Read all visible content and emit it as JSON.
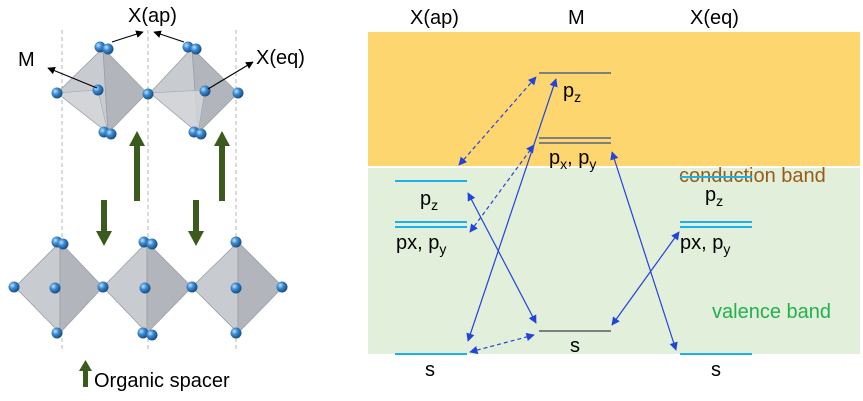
{
  "structure": {
    "labels": {
      "x_ap": "X(ap)",
      "m": "M",
      "x_eq": "X(eq)"
    },
    "legend": {
      "organic_spacer": "Organic spacer"
    }
  },
  "energy_diagram": {
    "columns": {
      "x_ap": "X(ap)",
      "m": "M",
      "x_eq": "X(eq)"
    },
    "bands": {
      "conduction": "conduction band",
      "valence": "valence band"
    },
    "levels": {
      "m_pz": {
        "main": "p",
        "sub": "z"
      },
      "m_pxpy": {
        "main": "p",
        "sub1": "x",
        "sep": ", p",
        "sub2": "y"
      },
      "m_s": "s",
      "xap_pz": {
        "main": "p",
        "sub": "z"
      },
      "xap_pxpy": {
        "main": "px, p",
        "sub": "y"
      },
      "xap_s": "s",
      "xeq_pz": {
        "main": "p",
        "sub": "z"
      },
      "xeq_pxpy": {
        "main": "px, p",
        "sub": "y"
      },
      "xeq_s": "s"
    }
  },
  "colors": {
    "conduction_band": "#fdd670",
    "valence_band": "#e2efda",
    "x_level": "#1ab2e8",
    "m_level": "#7f7f7f",
    "arrow": "#2244dd",
    "spacer_arrow": "#3b5a1e",
    "conduction_text": "#9a5b13",
    "valence_text": "#22b14c",
    "atom": "#2f7fc4"
  }
}
